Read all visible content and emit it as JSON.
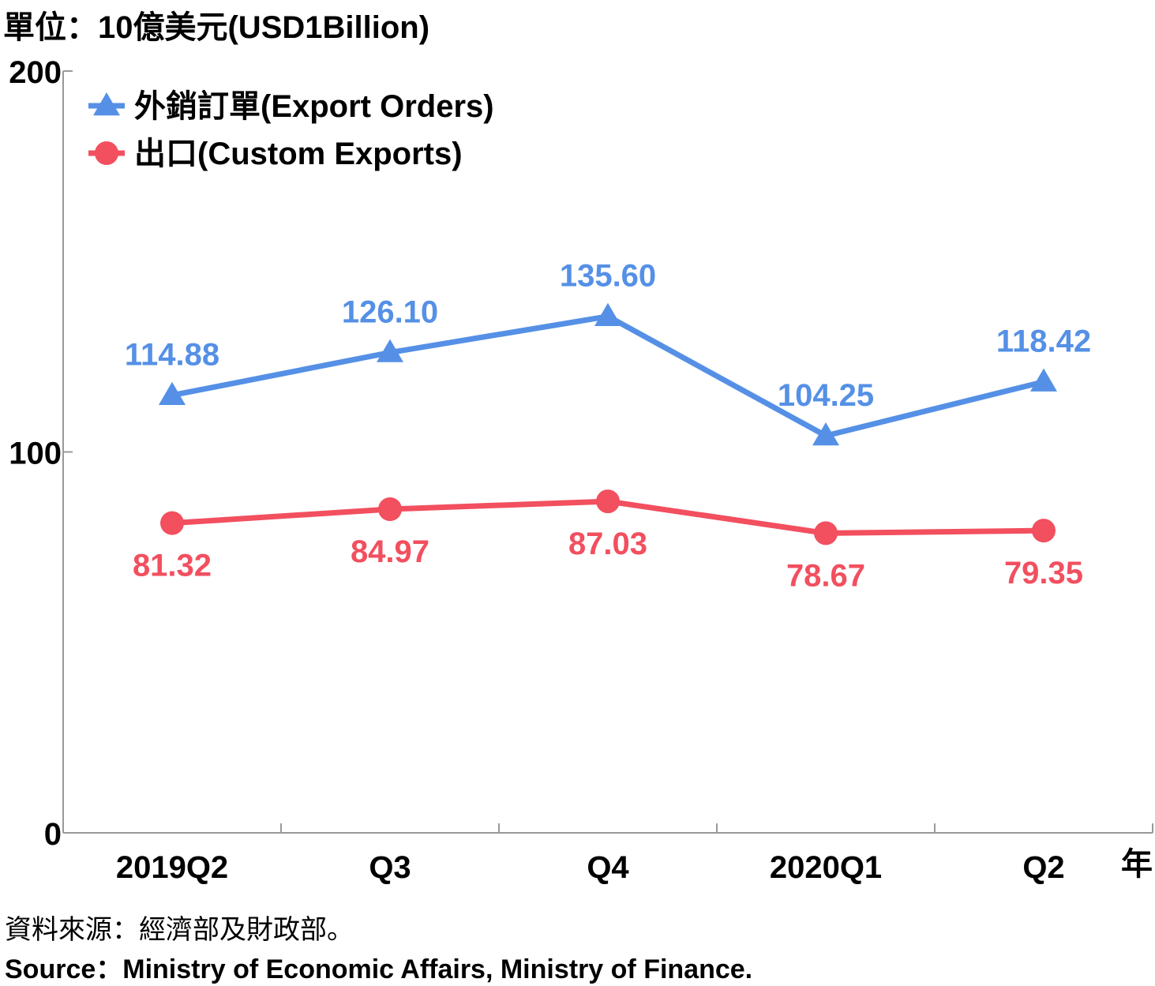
{
  "unit": "單位：10億美元(USD1Billion)",
  "source_zh": "資料來源：經濟部及財政部。",
  "source_en": "Source：Ministry of Economic Affairs, Ministry of Finance.",
  "colors": {
    "export_orders": "#5590e6",
    "custom_exports": "#f24f5f",
    "axis": "#999999"
  },
  "chart_data": {
    "type": "line",
    "categories": [
      "2019Q2",
      "Q3",
      "Q4",
      "2020Q1",
      "Q2"
    ],
    "xlabel": "年",
    "ylabel": "",
    "ylim": [
      0,
      200
    ],
    "yticks": [
      "0",
      "100",
      "200"
    ],
    "grid": false,
    "legend": "top-left",
    "series": [
      {
        "name": "外銷訂單(Export Orders)",
        "marker": "triangle",
        "values": [
          114.88,
          126.1,
          135.6,
          104.25,
          118.42
        ],
        "labels": [
          "114.88",
          "126.10",
          "135.60",
          "104.25",
          "118.42"
        ]
      },
      {
        "name": "出口(Custom Exports)",
        "marker": "circle",
        "values": [
          81.32,
          84.97,
          87.03,
          78.67,
          79.35
        ],
        "labels": [
          "81.32",
          "84.97",
          "87.03",
          "78.67",
          "79.35"
        ]
      }
    ]
  }
}
